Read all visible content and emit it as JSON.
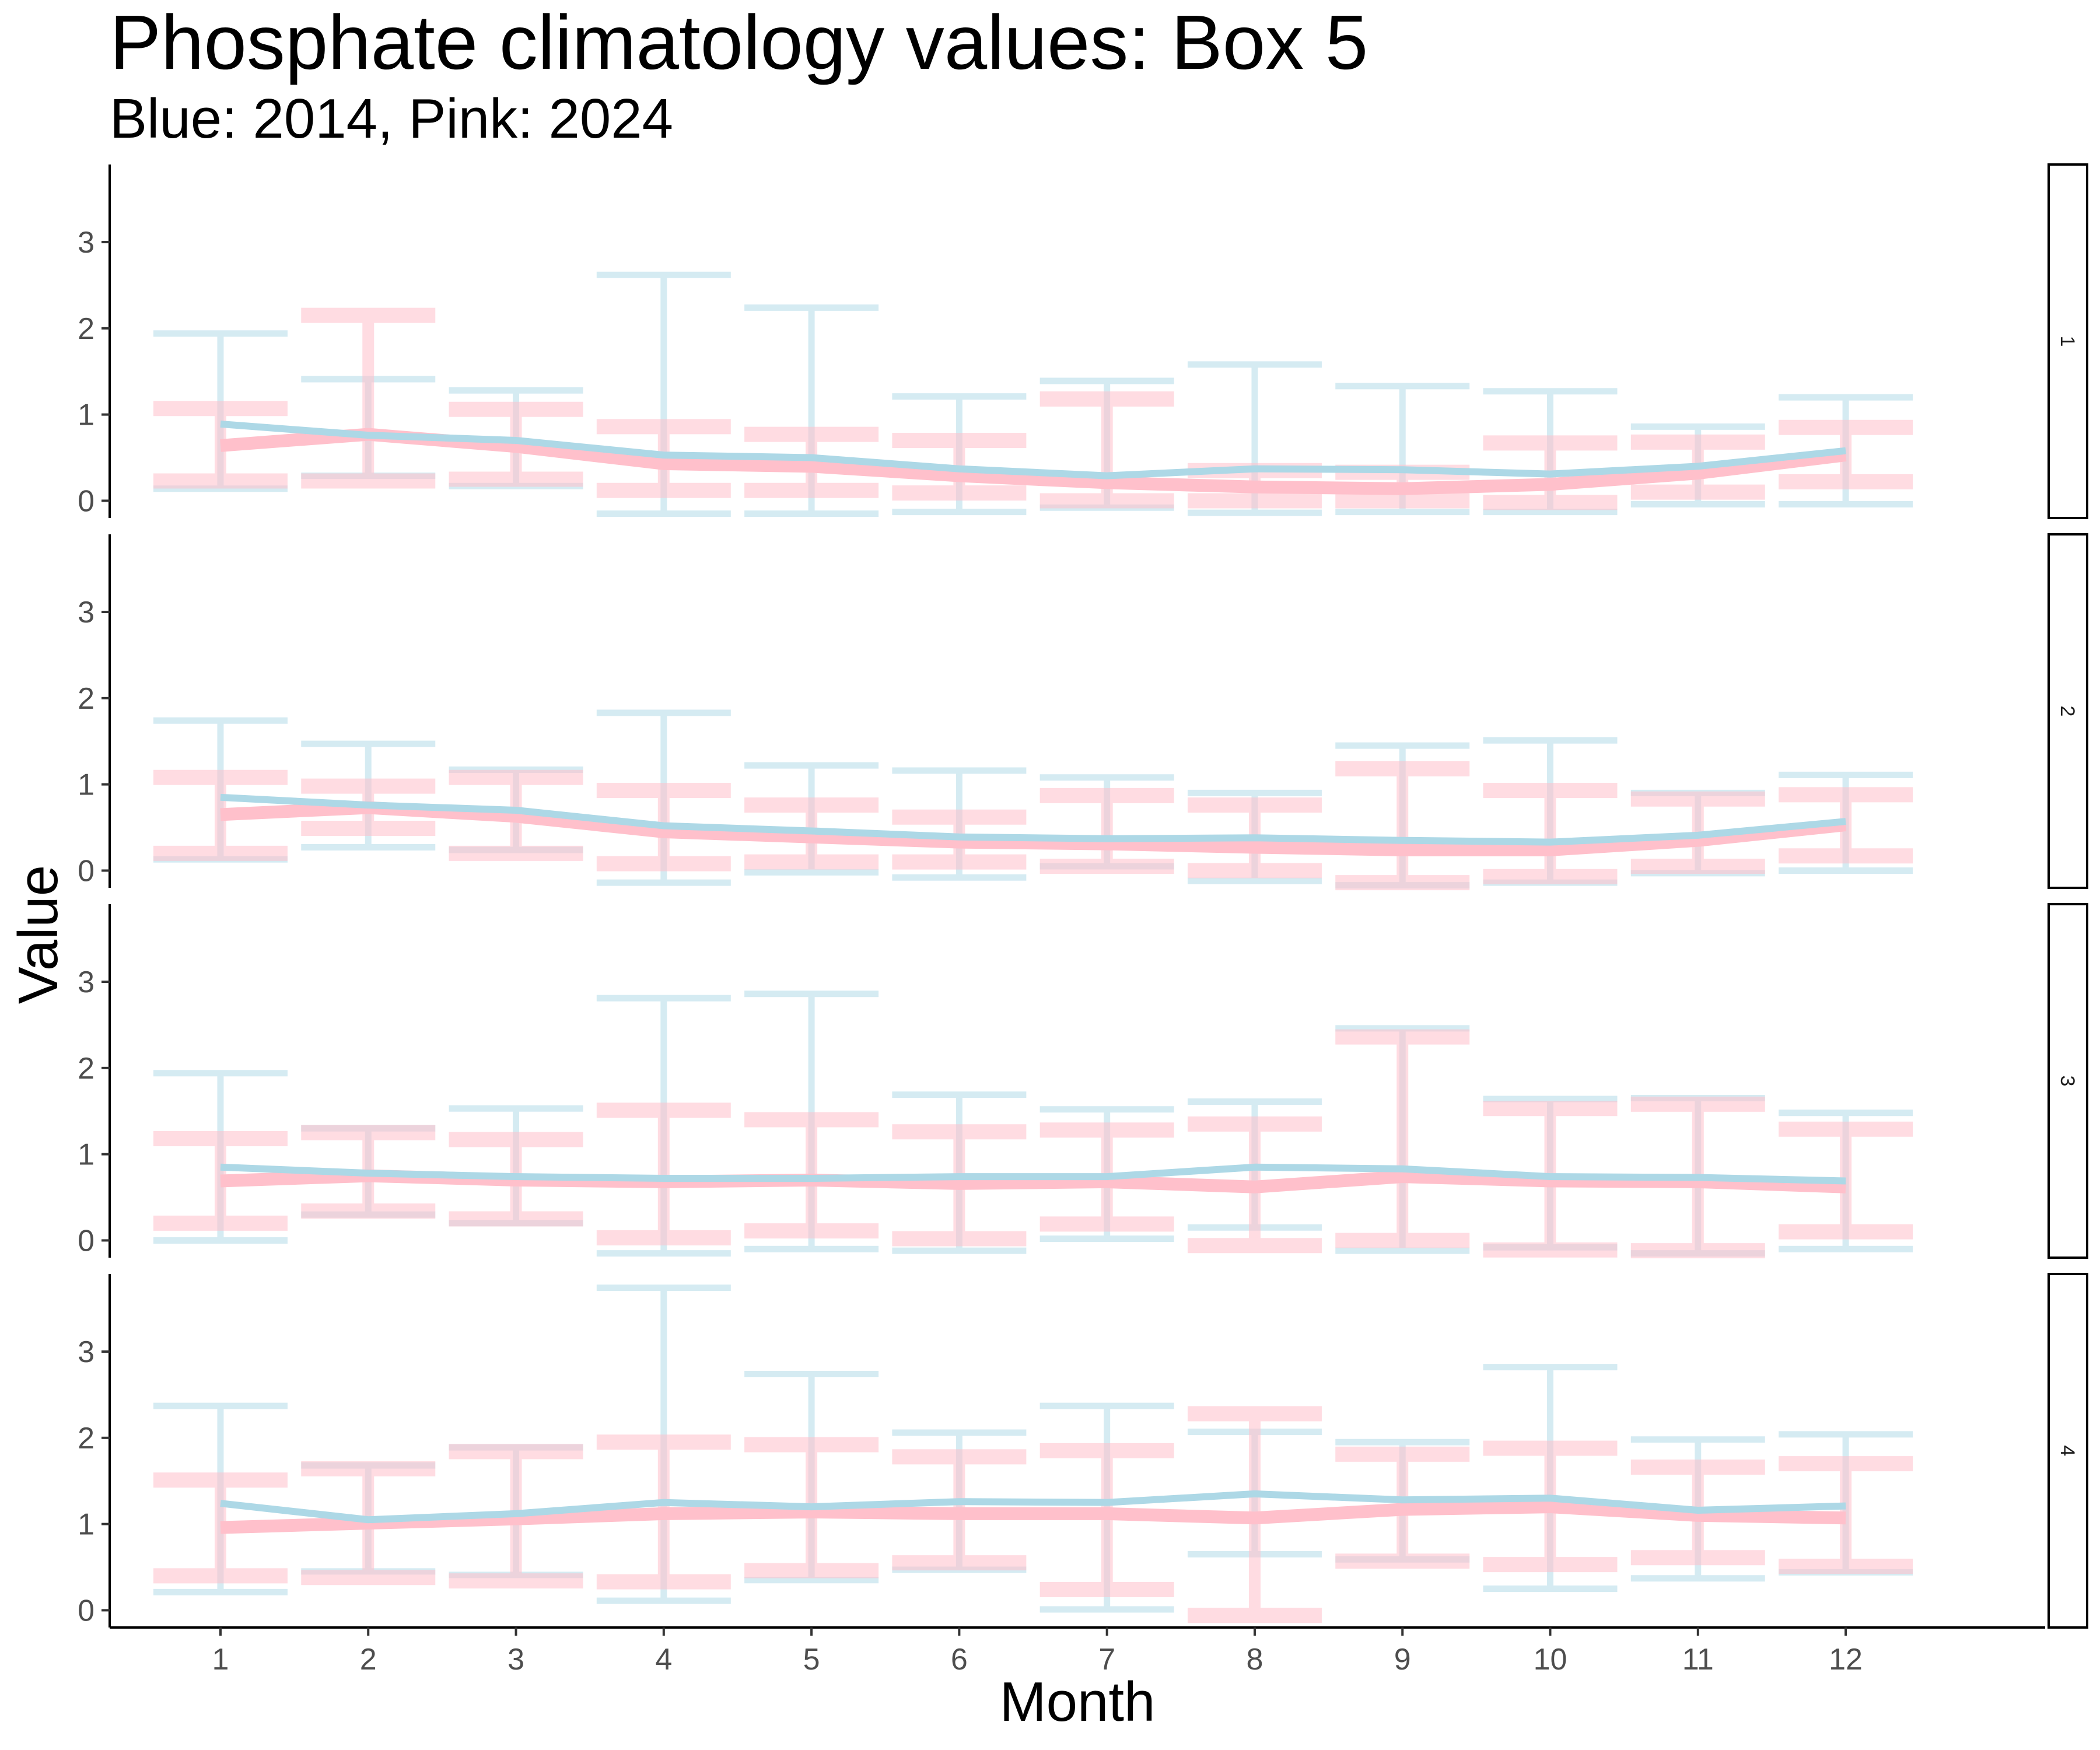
{
  "chart_data": {
    "type": "line",
    "title": "Phosphate climatology values: Box 5",
    "subtitle": "Blue: 2014, Pink: 2024",
    "xlabel": "Month",
    "ylabel": "Value",
    "x": [
      1,
      2,
      3,
      4,
      5,
      6,
      7,
      8,
      9,
      10,
      11,
      12
    ],
    "x_tick_labels": [
      "1",
      "2",
      "3",
      "4",
      "5",
      "6",
      "7",
      "8",
      "9",
      "10",
      "11",
      "12"
    ],
    "xlim": [
      0.25,
      13.35
    ],
    "ylim": [
      -0.2,
      3.9
    ],
    "y_ticks": [
      0,
      1,
      2,
      3
    ],
    "y_tick_labels": [
      "0",
      "1",
      "2",
      "3"
    ],
    "grid": false,
    "facets": [
      {
        "strip_label": "1",
        "series": [
          {
            "color": "#ADD8E6",
            "mean": [
              0.89,
              0.76,
              0.7,
              0.53,
              0.5,
              0.37,
              0.29,
              0.37,
              0.36,
              0.31,
              0.4,
              0.58
            ],
            "lower": [
              0.14,
              0.29,
              0.17,
              -0.15,
              -0.15,
              -0.13,
              -0.08,
              -0.14,
              -0.13,
              -0.13,
              -0.04,
              -0.04
            ],
            "upper": [
              1.94,
              1.41,
              1.28,
              2.62,
              2.24,
              1.21,
              1.39,
              1.58,
              1.33,
              1.27,
              0.86,
              1.2
            ]
          },
          {
            "color": "#FFC0CB",
            "mean": [
              0.64,
              0.77,
              0.63,
              0.43,
              0.4,
              0.29,
              0.21,
              0.16,
              0.14,
              0.19,
              0.32,
              0.53
            ],
            "lower": [
              0.23,
              0.23,
              0.25,
              0.12,
              0.12,
              0.09,
              0.0,
              0.0,
              0.0,
              -0.02,
              0.1,
              0.22
            ],
            "upper": [
              1.07,
              2.15,
              1.06,
              0.86,
              0.77,
              0.7,
              1.18,
              0.35,
              0.33,
              0.67,
              0.68,
              0.85
            ]
          }
        ]
      },
      {
        "strip_label": "2",
        "series": [
          {
            "color": "#ADD8E6",
            "mean": [
              0.85,
              0.76,
              0.7,
              0.52,
              0.46,
              0.39,
              0.37,
              0.38,
              0.35,
              0.33,
              0.41,
              0.57
            ],
            "lower": [
              0.13,
              0.27,
              0.24,
              -0.14,
              -0.02,
              -0.08,
              0.05,
              -0.12,
              -0.17,
              -0.14,
              -0.03,
              0.0
            ],
            "upper": [
              1.74,
              1.47,
              1.17,
              1.83,
              1.22,
              1.16,
              1.08,
              0.9,
              1.45,
              1.51,
              0.9,
              1.11
            ]
          },
          {
            "color": "#FFC0CB",
            "mean": [
              0.65,
              0.73,
              0.63,
              0.45,
              0.39,
              0.33,
              0.31,
              0.27,
              0.24,
              0.24,
              0.35,
              0.53
            ],
            "lower": [
              0.2,
              0.49,
              0.2,
              0.08,
              0.1,
              0.1,
              0.05,
              0.0,
              -0.14,
              -0.07,
              0.05,
              0.17
            ],
            "upper": [
              1.08,
              0.98,
              1.08,
              0.93,
              0.76,
              0.62,
              0.87,
              0.76,
              1.18,
              0.93,
              0.83,
              0.88
            ]
          }
        ]
      },
      {
        "strip_label": "3",
        "series": [
          {
            "color": "#ADD8E6",
            "mean": [
              0.85,
              0.78,
              0.74,
              0.72,
              0.72,
              0.74,
              0.74,
              0.85,
              0.83,
              0.74,
              0.73,
              0.69
            ],
            "lower": [
              0.0,
              0.3,
              0.2,
              -0.15,
              -0.1,
              -0.12,
              0.02,
              0.15,
              -0.12,
              -0.08,
              -0.15,
              -0.1
            ],
            "upper": [
              1.94,
              1.3,
              1.53,
              2.81,
              2.86,
              1.69,
              1.52,
              1.61,
              2.46,
              1.64,
              1.65,
              1.48
            ]
          },
          {
            "color": "#FFC0CB",
            "mean": [
              0.69,
              0.75,
              0.7,
              0.68,
              0.7,
              0.66,
              0.68,
              0.62,
              0.74,
              0.69,
              0.68,
              0.62
            ],
            "lower": [
              0.2,
              0.34,
              0.25,
              0.03,
              0.11,
              0.02,
              0.19,
              -0.06,
              0.0,
              -0.11,
              -0.12,
              0.1
            ],
            "upper": [
              1.18,
              1.25,
              1.17,
              1.51,
              1.4,
              1.26,
              1.28,
              1.35,
              2.36,
              1.53,
              1.58,
              1.29
            ]
          }
        ]
      },
      {
        "strip_label": "4",
        "series": [
          {
            "color": "#ADD8E6",
            "mean": [
              1.24,
              1.05,
              1.12,
              1.25,
              1.2,
              1.26,
              1.25,
              1.35,
              1.28,
              1.3,
              1.16,
              1.21
            ],
            "lower": [
              0.21,
              0.45,
              0.41,
              0.11,
              0.35,
              0.47,
              0.01,
              0.65,
              0.59,
              0.25,
              0.37,
              0.44
            ],
            "upper": [
              2.37,
              1.68,
              1.89,
              3.74,
              2.74,
              2.06,
              2.37,
              2.07,
              1.95,
              2.82,
              1.98,
              2.04
            ]
          },
          {
            "color": "#FFC0CB",
            "mean": [
              0.96,
              1.01,
              1.06,
              1.12,
              1.14,
              1.12,
              1.12,
              1.07,
              1.17,
              1.2,
              1.1,
              1.07
            ],
            "lower": [
              0.4,
              0.38,
              0.34,
              0.33,
              0.46,
              0.55,
              0.24,
              -0.06,
              0.57,
              0.53,
              0.61,
              0.51
            ],
            "upper": [
              1.51,
              1.64,
              1.84,
              1.95,
              1.92,
              1.78,
              1.85,
              2.28,
              1.81,
              1.88,
              1.66,
              1.7
            ]
          }
        ]
      }
    ]
  }
}
